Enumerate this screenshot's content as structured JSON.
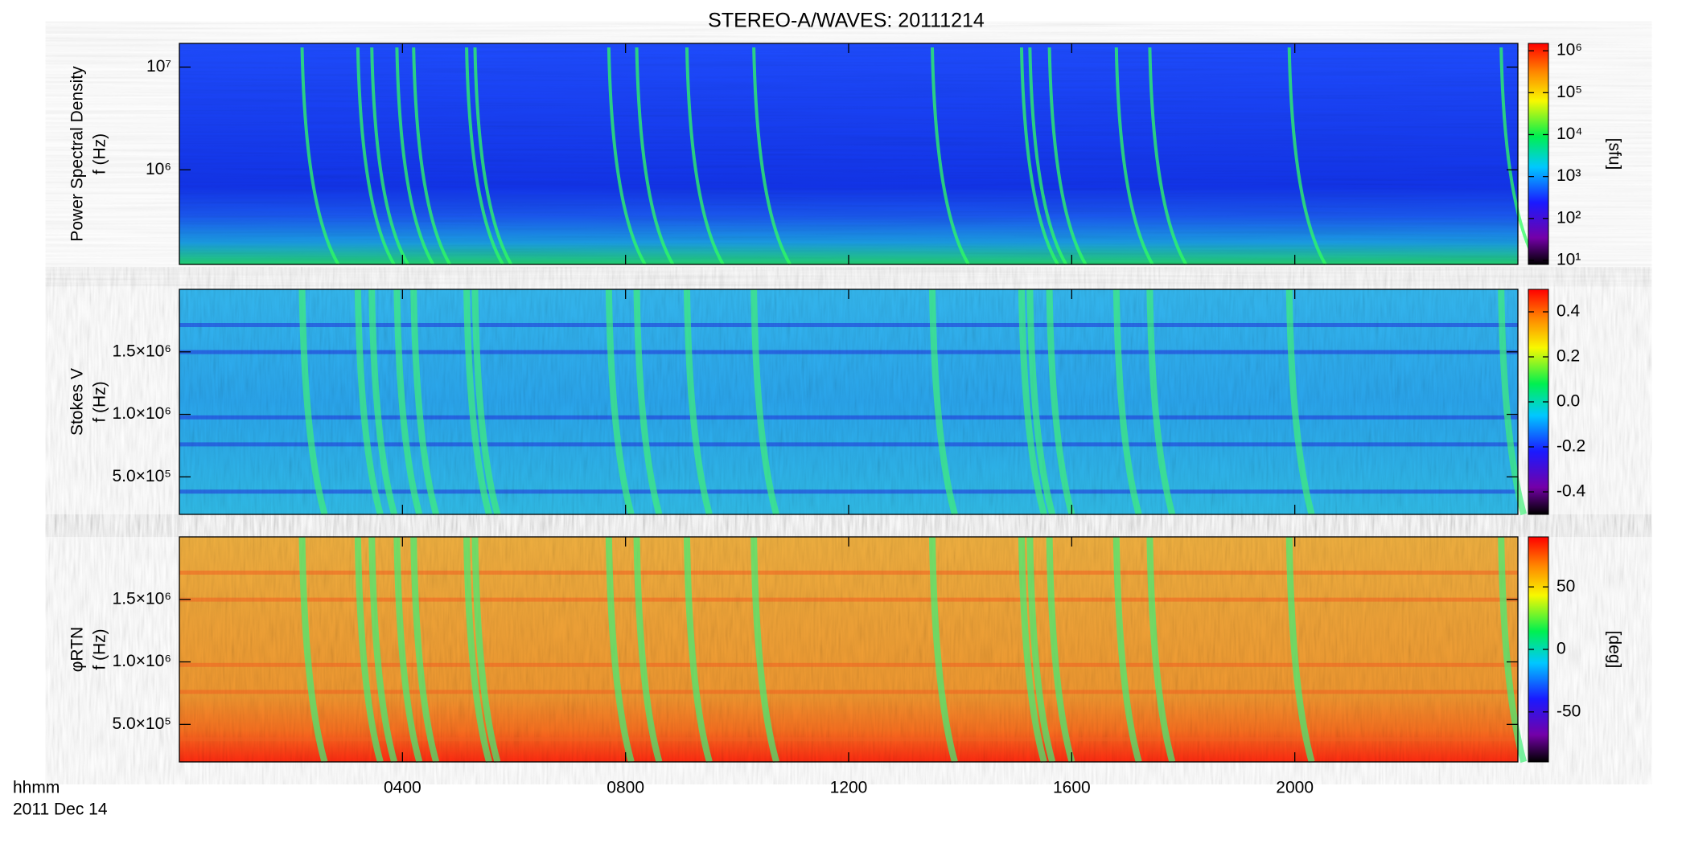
{
  "chart_data": [
    {
      "type": "heatmap",
      "title": "STEREO-A/WAVES: 20111214",
      "ylabel": [
        "Power Spectral Density",
        "f (Hz)"
      ],
      "yscale": "log",
      "ylim": [
        120000,
        17000000
      ],
      "yticks": [
        {
          "value": 1000000,
          "label": "10⁶"
        },
        {
          "value": 10000000,
          "label": "10⁷"
        }
      ],
      "colorbar": {
        "scale": "log",
        "lim": [
          8,
          1500000
        ],
        "colormap": "rainbow",
        "label": "[sfu]",
        "ticks": [
          {
            "value": 10,
            "label": "10¹"
          },
          {
            "value": 100,
            "label": "10²"
          },
          {
            "value": 1000,
            "label": "10³"
          },
          {
            "value": 10000,
            "label": "10⁴"
          },
          {
            "value": 100000,
            "label": "10⁵"
          },
          {
            "value": 1000000,
            "label": "10⁶"
          }
        ]
      }
    },
    {
      "type": "heatmap",
      "ylabel": [
        "Stokes V",
        "f (Hz)"
      ],
      "yscale": "linear",
      "ylim": [
        200000,
        2000000
      ],
      "yticks": [
        {
          "value": 500000,
          "label": "5.0×10⁵"
        },
        {
          "value": 1000000,
          "label": "1.0×10⁶"
        },
        {
          "value": 1500000,
          "label": "1.5×10⁶"
        }
      ],
      "colorbar": {
        "scale": "linear",
        "lim": [
          -0.5,
          0.5
        ],
        "colormap": "rainbow",
        "ticks": [
          {
            "value": -0.4,
            "label": "-0.4"
          },
          {
            "value": -0.2,
            "label": "-0.2"
          },
          {
            "value": 0,
            "label": "0.0"
          },
          {
            "value": 0.2,
            "label": "0.2"
          },
          {
            "value": 0.4,
            "label": "0.4"
          }
        ]
      }
    },
    {
      "type": "heatmap",
      "ylabel": [
        "φRTN",
        "f (Hz)"
      ],
      "yscale": "linear",
      "ylim": [
        200000,
        2000000
      ],
      "yticks": [
        {
          "value": 500000,
          "label": "5.0×10⁵"
        },
        {
          "value": 1000000,
          "label": "1.0×10⁶"
        },
        {
          "value": 1500000,
          "label": "1.5×10⁶"
        }
      ],
      "colorbar": {
        "scale": "linear",
        "lim": [
          -90,
          90
        ],
        "colormap": "rainbow",
        "label": "[deg]",
        "ticks": [
          -50,
          0,
          50
        ]
      },
      "xlabel": "hhmm",
      "date": "2011 Dec 14",
      "xlim": [
        0,
        24
      ],
      "xticks": [
        {
          "value": 4,
          "label": "0400"
        },
        {
          "value": 8,
          "label": "0800"
        },
        {
          "value": 12,
          "label": "1200"
        },
        {
          "value": 16,
          "label": "1600"
        },
        {
          "value": 20,
          "label": "2000"
        }
      ]
    }
  ]
}
